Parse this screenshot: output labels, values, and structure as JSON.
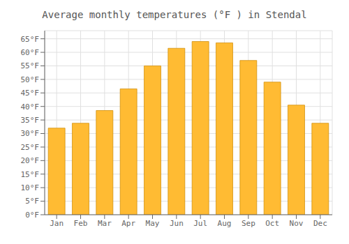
{
  "chart_data": {
    "type": "bar",
    "title": "Average monthly temperatures (°F ) in Stendal",
    "categories": [
      "Jan",
      "Feb",
      "Mar",
      "Apr",
      "May",
      "Jun",
      "Jul",
      "Aug",
      "Sep",
      "Oct",
      "Nov",
      "Dec"
    ],
    "values": [
      32.0,
      33.8,
      38.5,
      46.5,
      55.0,
      61.5,
      64.0,
      63.5,
      57.0,
      49.0,
      40.5,
      33.8
    ],
    "color": "#FFBB33",
    "ylim": [
      0,
      68
    ],
    "yticks": [
      {
        "value": 0,
        "label": "0°F"
      },
      {
        "value": 5,
        "label": "5°F"
      },
      {
        "value": 10,
        "label": "10°F"
      },
      {
        "value": 15,
        "label": "15°F"
      },
      {
        "value": 20,
        "label": "20°F"
      },
      {
        "value": 25,
        "label": "25°F"
      },
      {
        "value": 30,
        "label": "30°F"
      },
      {
        "value": 35,
        "label": "35°F"
      },
      {
        "value": 40,
        "label": "40°F"
      },
      {
        "value": 45,
        "label": "45°F"
      },
      {
        "value": 50,
        "label": "50°F"
      },
      {
        "value": 55,
        "label": "55°F"
      },
      {
        "value": 60,
        "label": "60°F"
      },
      {
        "value": 65,
        "label": "65°F"
      }
    ],
    "grid": true
  }
}
